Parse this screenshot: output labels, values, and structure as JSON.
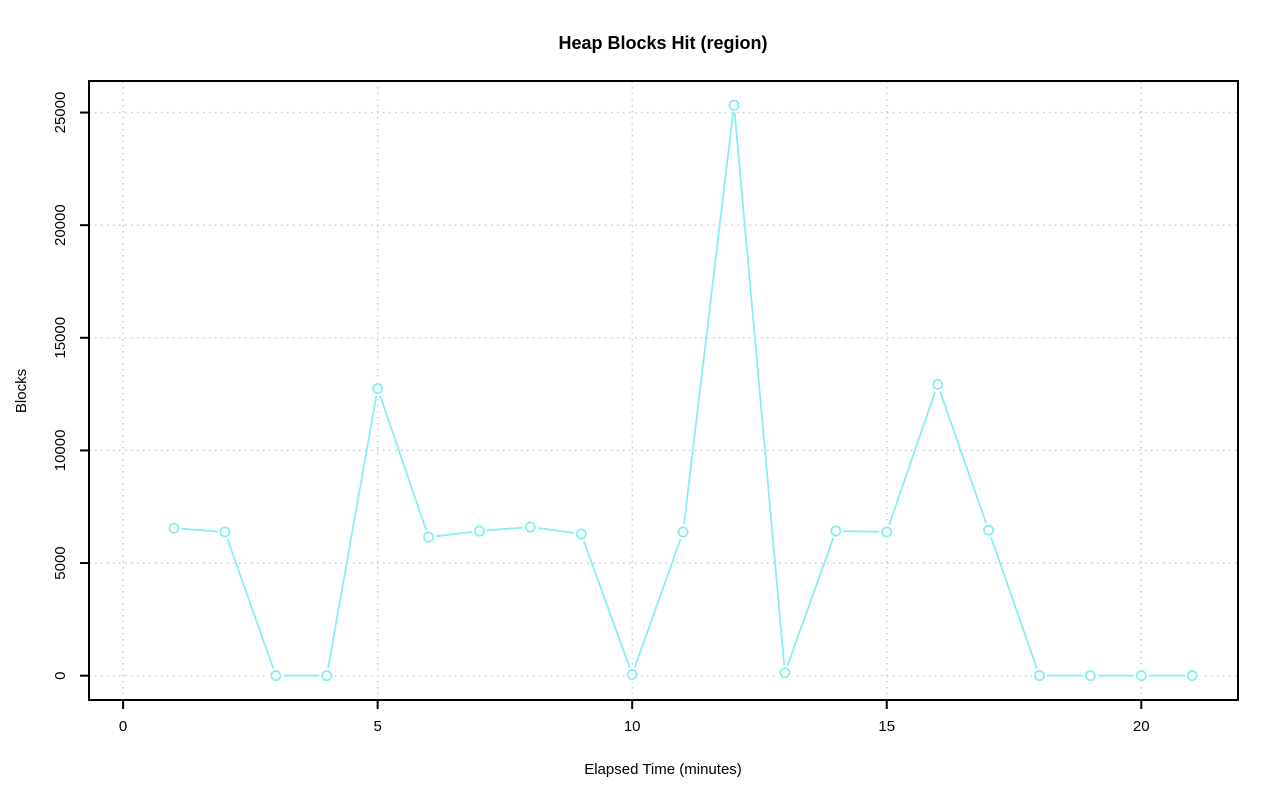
{
  "figure": {
    "background": "#ffffff"
  },
  "colors": {
    "series": "#85f0f0",
    "grid": "#c8c8c8",
    "axis": "#000000",
    "marker_fill": "#ffffff"
  },
  "chart_data": {
    "type": "line",
    "title": "Heap Blocks Hit (region)",
    "xlabel": "Elapsed Time (minutes)",
    "ylabel": "Blocks",
    "x": [
      1,
      2,
      3,
      4,
      5,
      6,
      7,
      8,
      9,
      10,
      11,
      12,
      13,
      14,
      15,
      16,
      17,
      18,
      19,
      20,
      21
    ],
    "y": [
      6550,
      6380,
      0,
      0,
      12750,
      6150,
      6420,
      6600,
      6290,
      50,
      6380,
      25330,
      130,
      6420,
      6380,
      12930,
      6460,
      0,
      0,
      0,
      0
    ],
    "xticks": [
      0,
      5,
      10,
      15,
      20
    ],
    "yticks": [
      0,
      5000,
      10000,
      15000,
      20000,
      25000
    ],
    "xlim": [
      -0.67,
      21.9
    ],
    "ylim": [
      -1080,
      26400
    ],
    "grid": true,
    "grid_style": "dotted",
    "legend": "none",
    "marker": "open-circle",
    "series_name": "heap blocks hit"
  }
}
